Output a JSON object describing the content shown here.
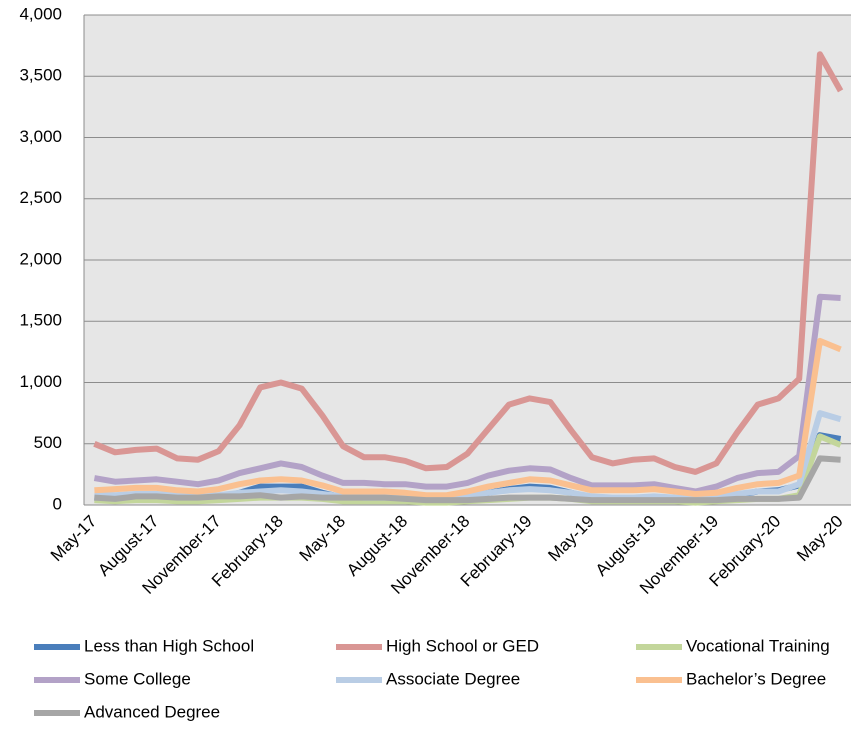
{
  "chart_data": {
    "type": "line",
    "categories": [
      "May-17",
      null,
      null,
      "August-17",
      null,
      null,
      "November-17",
      null,
      null,
      "February-18",
      null,
      null,
      "May-18",
      null,
      null,
      "August-18",
      null,
      null,
      "November-18",
      null,
      null,
      "February-19",
      null,
      null,
      "May-19",
      null,
      null,
      "August-19",
      null,
      null,
      "November-19",
      null,
      null,
      "February-20",
      null,
      null,
      "May-20"
    ],
    "series": [
      {
        "name": "Less than High School",
        "color": "#4a7ebb",
        "values": [
          60,
          50,
          60,
          60,
          50,
          50,
          60,
          100,
          150,
          150,
          150,
          100,
          60,
          50,
          50,
          50,
          40,
          40,
          60,
          100,
          130,
          150,
          140,
          100,
          60,
          50,
          50,
          60,
          50,
          40,
          50,
          80,
          110,
          120,
          160,
          570,
          540
        ]
      },
      {
        "name": "High School or GED",
        "color": "#d99694",
        "values": [
          500,
          430,
          450,
          460,
          380,
          370,
          440,
          650,
          960,
          1000,
          950,
          730,
          480,
          390,
          390,
          360,
          300,
          310,
          420,
          620,
          820,
          870,
          840,
          610,
          390,
          340,
          370,
          380,
          310,
          270,
          340,
          590,
          820,
          870,
          1030,
          3680,
          3380
        ]
      },
      {
        "name": "Vocational Training",
        "color": "#c3d69b",
        "values": [
          40,
          30,
          40,
          40,
          30,
          30,
          40,
          50,
          60,
          60,
          60,
          50,
          30,
          30,
          30,
          30,
          20,
          20,
          30,
          40,
          50,
          60,
          60,
          50,
          30,
          30,
          30,
          30,
          30,
          20,
          30,
          40,
          50,
          50,
          80,
          560,
          490
        ]
      },
      {
        "name": "Some College",
        "color": "#b3a2c7",
        "values": [
          220,
          190,
          200,
          210,
          190,
          170,
          200,
          260,
          300,
          340,
          310,
          240,
          180,
          180,
          170,
          170,
          150,
          150,
          180,
          240,
          280,
          300,
          290,
          220,
          160,
          160,
          160,
          170,
          140,
          110,
          150,
          220,
          260,
          270,
          400,
          1700,
          1690
        ]
      },
      {
        "name": "Associate Degree",
        "color": "#b9cde5",
        "values": [
          90,
          80,
          90,
          90,
          80,
          70,
          80,
          100,
          110,
          120,
          110,
          90,
          70,
          60,
          60,
          60,
          50,
          50,
          70,
          100,
          120,
          130,
          120,
          100,
          70,
          60,
          60,
          70,
          60,
          50,
          60,
          90,
          110,
          110,
          170,
          750,
          700
        ]
      },
      {
        "name": "Bachelor’s Degree",
        "color": "#fac090",
        "values": [
          120,
          130,
          140,
          140,
          120,
          110,
          130,
          170,
          200,
          210,
          200,
          160,
          110,
          110,
          110,
          100,
          80,
          80,
          110,
          150,
          180,
          210,
          200,
          160,
          120,
          120,
          120,
          130,
          110,
          90,
          100,
          140,
          170,
          180,
          240,
          1340,
          1270
        ]
      },
      {
        "name": "Advanced Degree",
        "color": "#a6a6a6",
        "values": [
          60,
          50,
          70,
          70,
          60,
          60,
          70,
          70,
          80,
          60,
          70,
          60,
          60,
          60,
          60,
          50,
          40,
          40,
          40,
          50,
          60,
          60,
          60,
          50,
          40,
          40,
          40,
          40,
          40,
          40,
          40,
          50,
          50,
          50,
          60,
          380,
          370
        ]
      }
    ],
    "ylim": [
      0,
      4000
    ],
    "yticks": [
      0,
      {
        "value": 500,
        "label": "500"
      },
      {
        "value": 1000,
        "label": "1,000"
      },
      {
        "value": 1500,
        "label": "1,500"
      },
      {
        "value": 2000,
        "label": "2,000"
      },
      {
        "value": 2500,
        "label": "2,500"
      },
      {
        "value": 3000,
        "label": "3,000"
      },
      {
        "value": 3500,
        "label": "3,500"
      },
      {
        "value": 4000,
        "label": "4,000"
      }
    ],
    "grid": true,
    "legend": "bottom"
  }
}
